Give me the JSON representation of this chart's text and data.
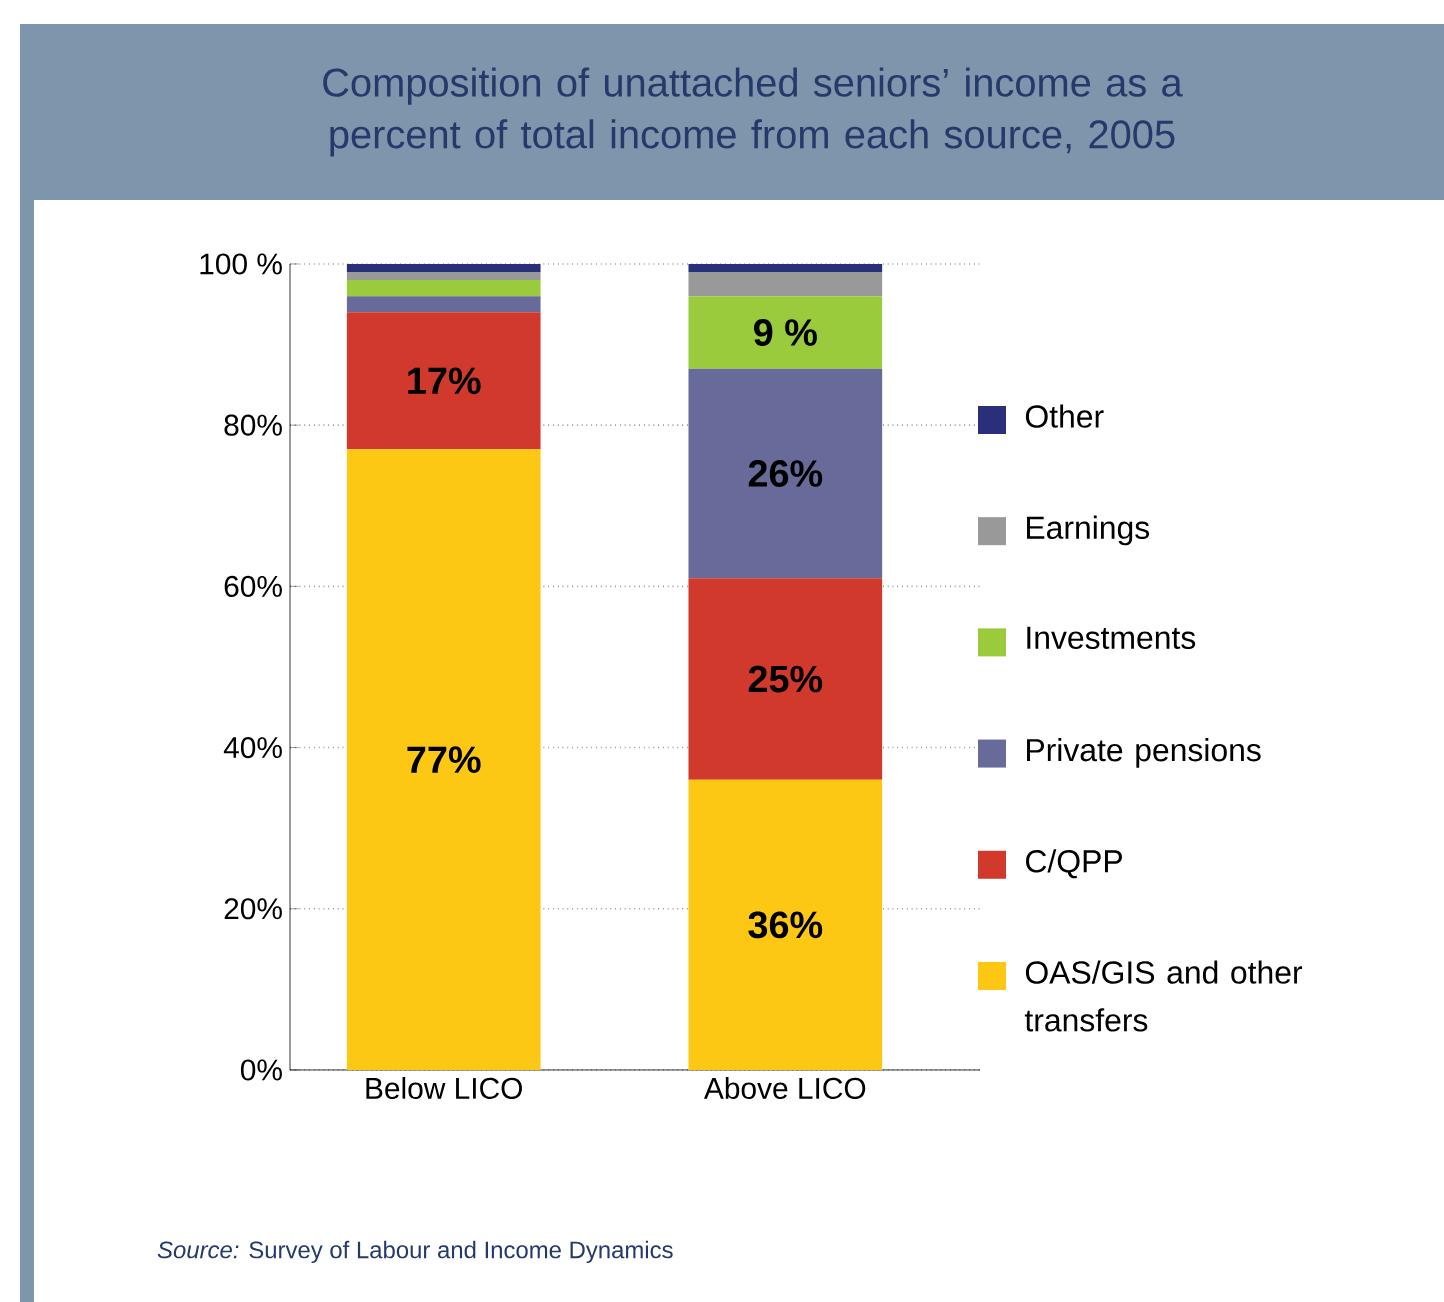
{
  "chart_data": {
    "type": "bar",
    "title": "Composition of unattached seniors’ income as a percent of total income from each source, 2005",
    "categories": [
      "Below LICO",
      "Above LICO"
    ],
    "stacked": true,
    "series": [
      {
        "name": "OAS/GIS and other transfers",
        "color": "#fdc813",
        "values": [
          77,
          36
        ],
        "value_labels": [
          "77%",
          "36%"
        ]
      },
      {
        "name": "C/QPP",
        "color": "#d0392b",
        "values": [
          17,
          25
        ],
        "value_labels": [
          "17%",
          "25%"
        ]
      },
      {
        "name": "Private pensions",
        "color": "#686a9a",
        "values": [
          2,
          26
        ],
        "value_labels": [
          null,
          "26%"
        ]
      },
      {
        "name": "Investments",
        "color": "#9acb3c",
        "values": [
          2,
          9
        ],
        "value_labels": [
          null,
          "9 %"
        ]
      },
      {
        "name": "Earnings",
        "color": "#999999",
        "values": [
          1,
          3
        ]
      },
      {
        "name": "Other",
        "color": "#2a2f7a",
        "values": [
          1,
          1
        ]
      }
    ],
    "ylim": [
      0,
      100
    ],
    "yticks": [
      {
        "value": 0,
        "label": "0%"
      },
      {
        "value": 20,
        "label": "20%"
      },
      {
        "value": 40,
        "label": "40%"
      },
      {
        "value": 60,
        "label": "60%"
      },
      {
        "value": 80,
        "label": "80%"
      },
      {
        "value": 100,
        "label": "100 %"
      }
    ],
    "grid": "y",
    "legend": "right",
    "annotations": [
      "*Source:* Survey of Labour and Income Dynamics"
    ]
  }
}
